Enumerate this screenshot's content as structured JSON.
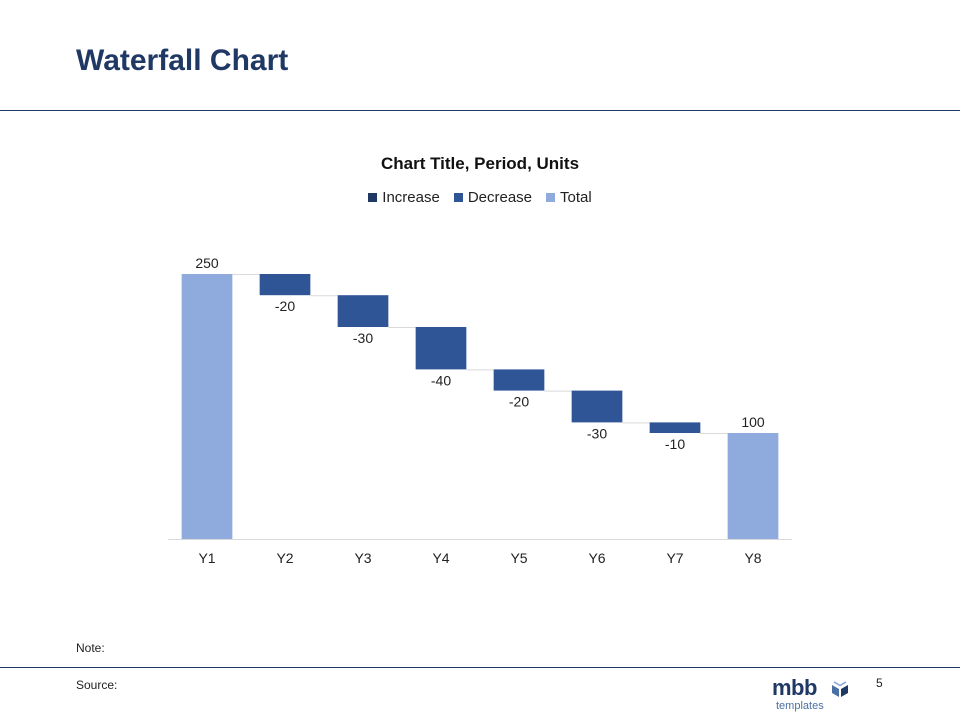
{
  "slide": {
    "title": "Waterfall Chart",
    "note_label": "Note:",
    "source_label": "Source:",
    "page_number": "5",
    "logo": {
      "main": "mbb",
      "sub": "templates"
    }
  },
  "colors": {
    "increase": "#1f3864",
    "decrease": "#2f5597",
    "total": "#8faadc",
    "title_color": "#1f3864"
  },
  "chart_data": {
    "type": "bar",
    "subtype": "waterfall",
    "title": "Chart Title, Period, Units",
    "legend": [
      "Increase",
      "Decrease",
      "Total"
    ],
    "legend_position": "top",
    "categories": [
      "Y1",
      "Y2",
      "Y3",
      "Y4",
      "Y5",
      "Y6",
      "Y7",
      "Y8"
    ],
    "values": [
      250,
      -20,
      -30,
      -40,
      -20,
      -30,
      -10,
      100
    ],
    "kinds": [
      "total",
      "decrease",
      "decrease",
      "decrease",
      "decrease",
      "decrease",
      "decrease",
      "total"
    ],
    "data_labels": [
      "250",
      "-20",
      "-30",
      "-40",
      "-20",
      "-30",
      "-10",
      "100"
    ],
    "ylim": [
      0,
      250
    ],
    "grid": false,
    "connectors": true
  }
}
